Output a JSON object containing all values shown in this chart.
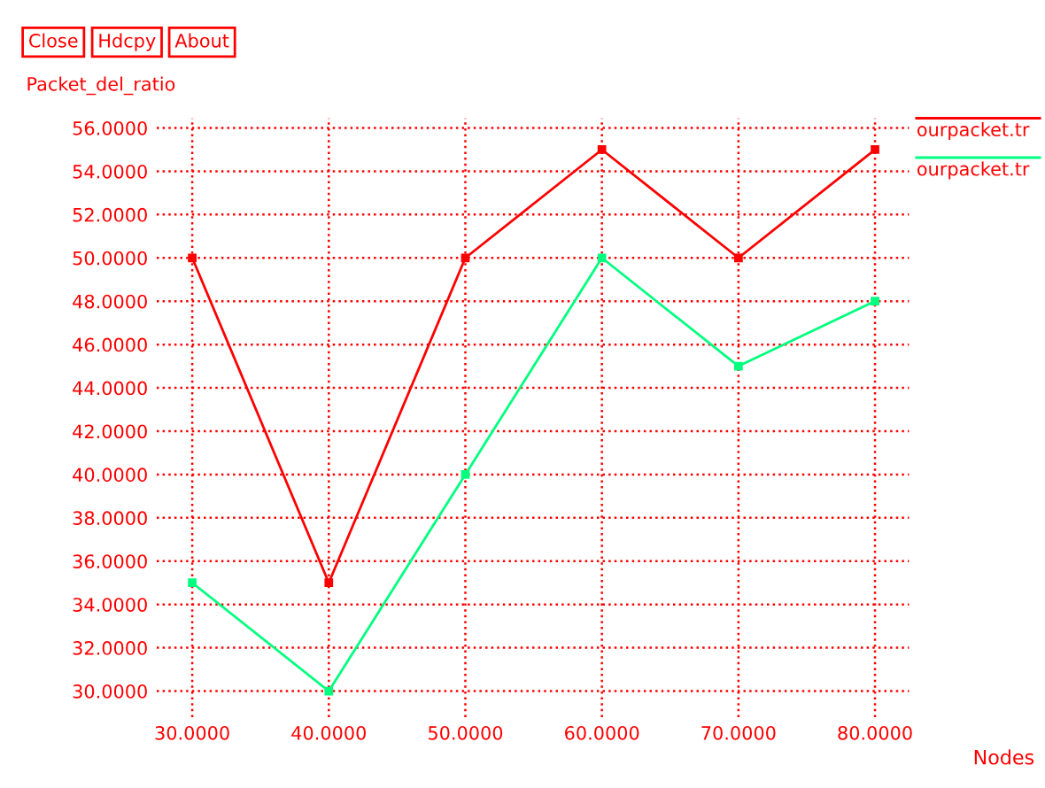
{
  "chart_data": {
    "type": "line",
    "xlabel": "Nodes",
    "ylabel": "Packet_del_ratio",
    "annotations": [
      "Close",
      "Hdcpy",
      "About"
    ],
    "x": [
      30,
      40,
      50,
      60,
      70,
      80
    ],
    "series": [
      {
        "name": "ourpacket.tr",
        "color": "#ff0000",
        "values": [
          50,
          35,
          50,
          55,
          50,
          55
        ]
      },
      {
        "name": "ourpacket.tr",
        "color": "#00ff7f",
        "values": [
          35,
          30,
          40,
          50,
          45,
          48
        ]
      }
    ],
    "xlim": [
      27.4,
      82.5
    ],
    "ylim": [
      28.8,
      56.45
    ],
    "xticks": [
      {
        "value": 30,
        "label": "30.0000"
      },
      {
        "value": 40,
        "label": "40.0000"
      },
      {
        "value": 50,
        "label": "50.0000"
      },
      {
        "value": 60,
        "label": "60.0000"
      },
      {
        "value": 70,
        "label": "70.0000"
      },
      {
        "value": 80,
        "label": "80.0000"
      }
    ],
    "yticks": [
      {
        "value": 30,
        "label": "30.0000"
      },
      {
        "value": 32,
        "label": "32.0000"
      },
      {
        "value": 34,
        "label": "34.0000"
      },
      {
        "value": 36,
        "label": "36.0000"
      },
      {
        "value": 38,
        "label": "38.0000"
      },
      {
        "value": 40,
        "label": "40.0000"
      },
      {
        "value": 42,
        "label": "42.0000"
      },
      {
        "value": 44,
        "label": "44.0000"
      },
      {
        "value": 46,
        "label": "46.0000"
      },
      {
        "value": 48,
        "label": "48.0000"
      },
      {
        "value": 50,
        "label": "50.0000"
      },
      {
        "value": 52,
        "label": "52.0000"
      },
      {
        "value": 54,
        "label": "54.0000"
      },
      {
        "value": 56,
        "label": "56.0000"
      }
    ],
    "grid": true,
    "legend": "top right",
    "marker": "square",
    "line_style": "solid"
  }
}
